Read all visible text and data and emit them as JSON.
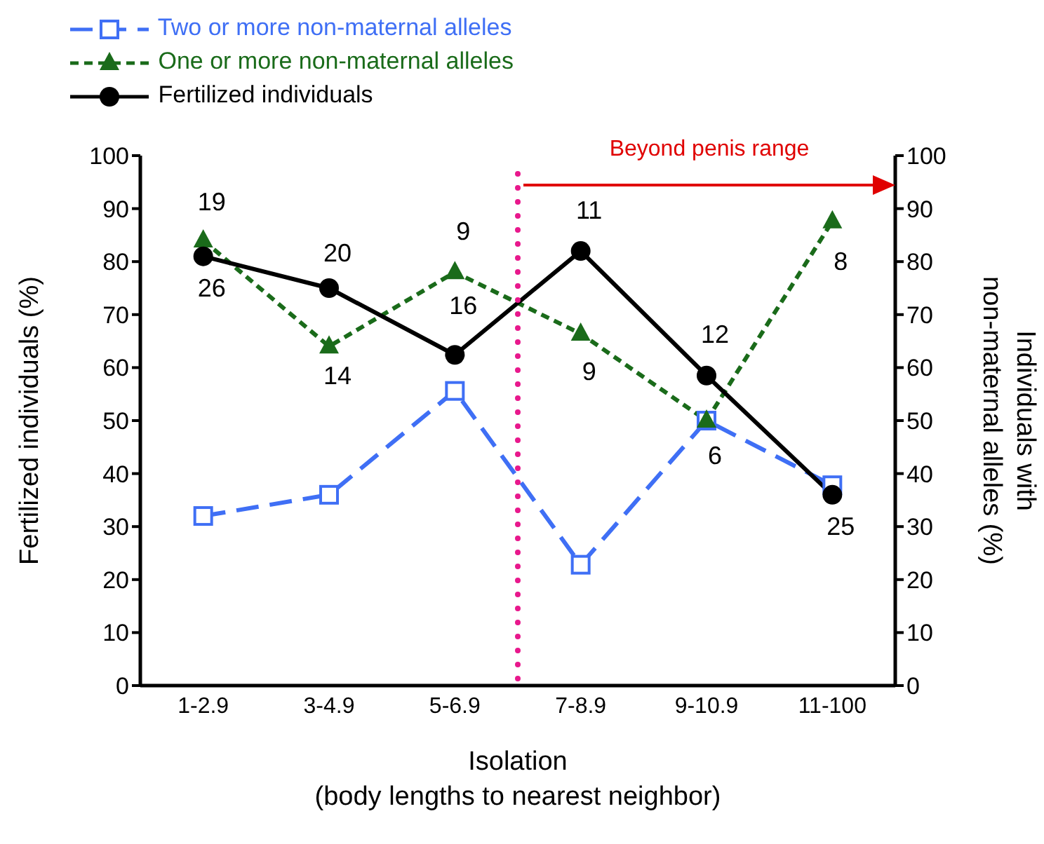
{
  "chart_data": {
    "type": "line",
    "xlabel": "Isolation\n(body lengths to nearest neighbor)",
    "ylabel": "Fertilized individuals (%)",
    "y2label": "Individuals with\nnon-maternal alleles (%)",
    "categories": [
      "1-2.9",
      "3-4.9",
      "5-6.9",
      "7-8.9",
      "9-10.9",
      "11-100"
    ],
    "series": [
      {
        "name": "Two or more non-maternal alleles",
        "color": "#3f6ff5",
        "values": [
          32,
          36,
          55.6,
          22.8,
          50,
          37.8
        ],
        "axis": "y2",
        "marker": "square",
        "line_style": "dashed"
      },
      {
        "name": "One or more non-maternal alleles",
        "color": "#1a6b1a",
        "values": [
          84,
          64,
          78,
          66.4,
          50,
          87.6
        ],
        "axis": "y2",
        "marker": "triangle",
        "line_style": "dashed"
      },
      {
        "name": "Fertilized individuals",
        "color": "#000000",
        "values": [
          81,
          75,
          62.4,
          82,
          58.5,
          36
        ],
        "marker": "circle",
        "line_style": "solid"
      }
    ],
    "ylim": [
      0,
      100
    ],
    "yticks": [
      0,
      10,
      20,
      30,
      40,
      50,
      60,
      70,
      80,
      90,
      100
    ],
    "y2lim": [
      0,
      100
    ],
    "y2ticks": [
      0,
      10,
      20,
      30,
      40,
      50,
      60,
      70,
      80,
      90,
      100
    ],
    "annotations": [
      "19",
      "26",
      "20",
      "14",
      "9",
      "16",
      "11",
      "9",
      "12",
      "6",
      "8",
      "25",
      "Beyond penis range"
    ],
    "ref_lines": [
      {
        "axis": "x",
        "value": "7-8.9",
        "color": "#e8188c",
        "line_style": "dotted"
      }
    ],
    "legend": "top left"
  }
}
